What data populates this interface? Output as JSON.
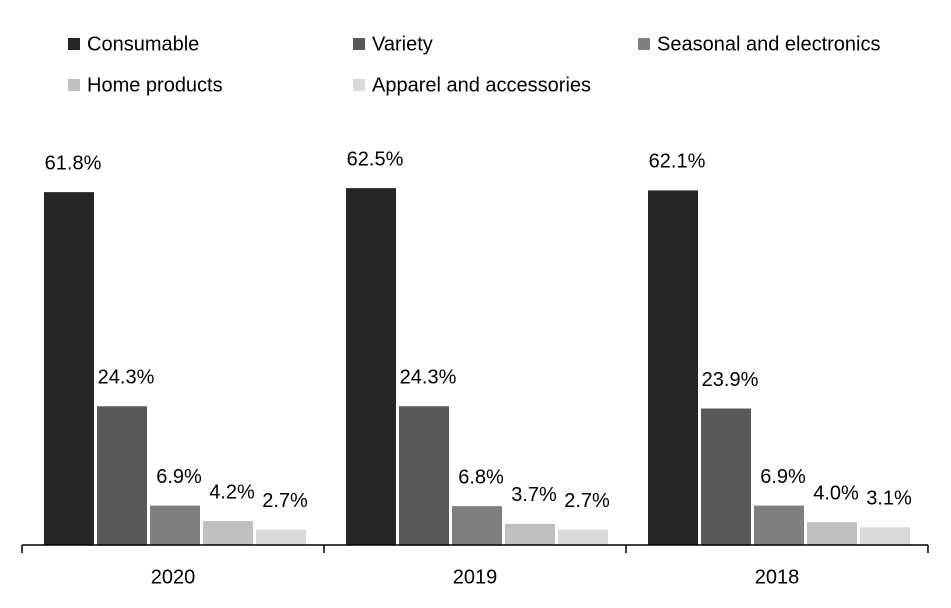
{
  "chart_data": {
    "type": "bar",
    "categories": [
      "2020",
      "2019",
      "2018"
    ],
    "series": [
      {
        "name": "Consumable",
        "color": "#262626",
        "values": [
          61.8,
          62.5,
          62.1
        ],
        "value_labels": [
          "61.8%",
          "62.5%",
          "62.1%"
        ]
      },
      {
        "name": "Variety",
        "color": "#595959",
        "values": [
          24.3,
          24.3,
          23.9
        ],
        "value_labels": [
          "24.3%",
          "24.3%",
          "23.9%"
        ]
      },
      {
        "name": "Seasonal and electronics",
        "color": "#7f7f7f",
        "values": [
          6.9,
          6.8,
          6.9
        ],
        "value_labels": [
          "6.9%",
          "6.8%",
          "6.9%"
        ]
      },
      {
        "name": "Home products",
        "color": "#bfbfbf",
        "values": [
          4.2,
          3.7,
          4.0
        ],
        "value_labels": [
          "4.2%",
          "3.7%",
          "4.0%"
        ]
      },
      {
        "name": "Apparel and accessories",
        "color": "#d9d9d9",
        "values": [
          2.7,
          2.7,
          3.1
        ],
        "value_labels": [
          "2.7%",
          "2.7%",
          "3.1%"
        ]
      }
    ]
  }
}
